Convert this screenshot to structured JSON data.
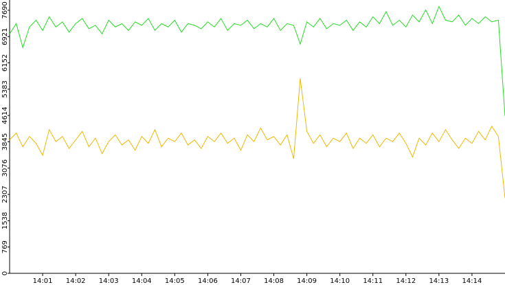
{
  "chart_data": {
    "type": "line",
    "x": [
      840,
      840.2,
      840.4,
      840.6,
      840.8,
      841,
      841.2,
      841.4,
      841.6,
      841.8,
      842,
      842.2,
      842.4,
      842.6,
      842.8,
      843,
      843.2,
      843.4,
      843.6,
      843.8,
      844,
      844.2,
      844.4,
      844.6,
      844.8,
      845,
      845.2,
      845.4,
      845.6,
      845.8,
      846,
      846.2,
      846.4,
      846.6,
      846.8,
      847,
      847.2,
      847.4,
      847.6,
      847.8,
      848,
      848.2,
      848.4,
      848.6,
      848.8,
      849,
      849.2,
      849.4,
      849.6,
      849.8,
      850,
      850.2,
      850.4,
      850.6,
      850.8,
      851,
      851.2,
      851.4,
      851.6,
      851.8,
      852,
      852.2,
      852.4,
      852.6,
      852.8,
      853,
      853.2,
      853.4,
      853.6,
      853.8,
      854,
      854.2,
      854.4,
      854.6,
      854.8,
      855
    ],
    "series": [
      {
        "color": "#22dd22",
        "values": [
          7000,
          7300,
          6600,
          7200,
          7400,
          7100,
          7500,
          7200,
          7350,
          7050,
          7300,
          7450,
          7150,
          7250,
          7000,
          7400,
          7200,
          7300,
          7100,
          7350,
          7250,
          7450,
          7100,
          7300,
          7200,
          7400,
          7050,
          7300,
          7250,
          7150,
          7350,
          7200,
          7450,
          7100,
          7300,
          7250,
          7400,
          7150,
          7300,
          7200,
          7450,
          7100,
          7300,
          7250,
          6700,
          7350,
          7200,
          7450,
          7150,
          7300,
          7250,
          7400,
          7100,
          7350,
          7200,
          7500,
          7300,
          7650,
          7250,
          7400,
          7200,
          7550,
          7350,
          7700,
          7300,
          7800,
          7400,
          7350,
          7550,
          7250,
          7450,
          7300,
          7500,
          7350,
          7400,
          4600
        ]
      },
      {
        "color": "#f0b800",
        "values": [
          3900,
          4100,
          3700,
          4000,
          3800,
          3450,
          4200,
          3850,
          4000,
          3650,
          3900,
          4150,
          3700,
          3950,
          3500,
          3850,
          4050,
          3750,
          3900,
          3600,
          4000,
          3800,
          4200,
          3700,
          3950,
          3850,
          4100,
          3750,
          3900,
          3650,
          4000,
          3850,
          4100,
          3800,
          3950,
          3600,
          4050,
          3850,
          4250,
          3900,
          4000,
          3750,
          4050,
          3350,
          5700,
          4150,
          3800,
          4050,
          3700,
          3950,
          3850,
          4100,
          3650,
          3950,
          3800,
          4050,
          3700,
          3950,
          3850,
          4100,
          3800,
          3400,
          3950,
          3750,
          4100,
          3850,
          4200,
          3900,
          3650,
          3950,
          3800,
          4150,
          3900,
          4300,
          4000,
          2200
        ]
      }
    ],
    "xlim": [
      840,
      855
    ],
    "xticks": [
      {
        "value": 841,
        "label": "14:01"
      },
      {
        "value": 842,
        "label": "14:02"
      },
      {
        "value": 843,
        "label": "14:03"
      },
      {
        "value": 844,
        "label": "14:04"
      },
      {
        "value": 845,
        "label": "14:05"
      },
      {
        "value": 846,
        "label": "14:06"
      },
      {
        "value": 847,
        "label": "14:07"
      },
      {
        "value": 848,
        "label": "14:08"
      },
      {
        "value": 849,
        "label": "14:09"
      },
      {
        "value": 850,
        "label": "14:10"
      },
      {
        "value": 851,
        "label": "14:11"
      },
      {
        "value": 852,
        "label": "14:12"
      },
      {
        "value": 853,
        "label": "14:13"
      },
      {
        "value": 854,
        "label": "14:14"
      }
    ],
    "ylim": [
      0,
      7990
    ],
    "yticks": [
      0,
      769,
      1538,
      2307,
      3076,
      3845,
      4614,
      5383,
      6152,
      6921,
      7690
    ]
  }
}
